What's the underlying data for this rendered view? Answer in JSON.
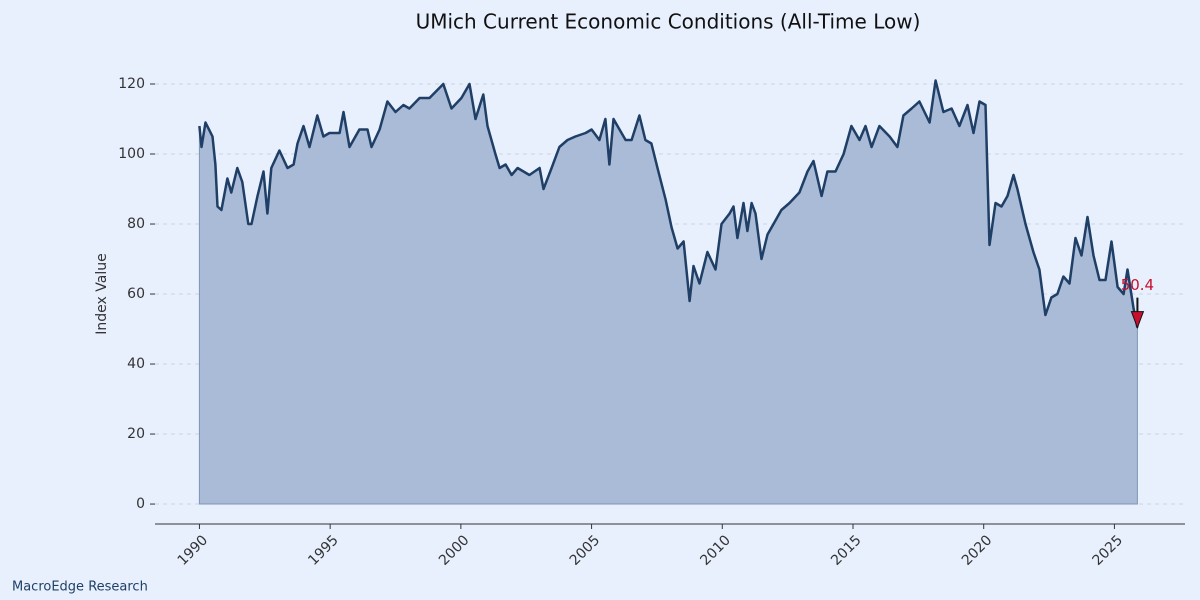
{
  "chart_data": {
    "type": "area",
    "title": "UMich Current Economic Conditions (All-Time Low)",
    "y_label": "Index Value",
    "source": "MacroEdge Research",
    "annotation": {
      "label": "50.4"
    },
    "x": [
      1990.0,
      1990.08,
      1990.23,
      1990.5,
      1990.61,
      1990.69,
      1990.84,
      1991.07,
      1991.22,
      1991.45,
      1991.64,
      1991.87,
      1991.99,
      1992.22,
      1992.45,
      1992.6,
      1992.75,
      1993.06,
      1993.37,
      1993.6,
      1993.75,
      1993.98,
      1994.21,
      1994.51,
      1994.74,
      1994.97,
      1995.36,
      1995.51,
      1995.74,
      1996.12,
      1996.43,
      1996.58,
      1996.89,
      1997.19,
      1997.5,
      1997.8,
      1998.03,
      1998.42,
      1998.8,
      1999.33,
      1999.64,
      2000.02,
      2000.33,
      2000.56,
      2000.86,
      2001.02,
      2001.32,
      2001.48,
      2001.71,
      2001.94,
      2002.17,
      2002.62,
      2003.01,
      2003.16,
      2003.47,
      2003.77,
      2004.08,
      2004.38,
      2004.77,
      2005.0,
      2005.3,
      2005.53,
      2005.68,
      2005.84,
      2005.99,
      2006.3,
      2006.53,
      2006.83,
      2007.06,
      2007.29,
      2007.52,
      2007.83,
      2008.06,
      2008.29,
      2008.52,
      2008.75,
      2008.9,
      2009.13,
      2009.43,
      2009.74,
      2009.97,
      2010.28,
      2010.43,
      2010.58,
      2010.81,
      2010.96,
      2011.12,
      2011.27,
      2011.5,
      2011.73,
      2011.96,
      2012.26,
      2012.57,
      2012.95,
      2013.26,
      2013.49,
      2013.8,
      2014.02,
      2014.33,
      2014.64,
      2014.94,
      2015.25,
      2015.48,
      2015.71,
      2016.01,
      2016.4,
      2016.7,
      2016.93,
      2017.24,
      2017.54,
      2017.93,
      2018.16,
      2018.46,
      2018.77,
      2019.07,
      2019.38,
      2019.61,
      2019.84,
      2020.07,
      2020.22,
      2020.45,
      2020.68,
      2020.91,
      2021.14,
      2021.29,
      2021.6,
      2021.9,
      2022.13,
      2022.36,
      2022.59,
      2022.82,
      2023.05,
      2023.28,
      2023.51,
      2023.74,
      2023.97,
      2024.2,
      2024.43,
      2024.66,
      2024.89,
      2025.12,
      2025.35,
      2025.5,
      2025.73,
      2025.88
    ],
    "series": [
      {
        "name": "Current Economic Conditions",
        "color": "#1f3f66",
        "fill": "#a9bbd6",
        "values": [
          108,
          102,
          109,
          105,
          97,
          85,
          84,
          93,
          89,
          96,
          92,
          80,
          80,
          88,
          95,
          83,
          96,
          101,
          96,
          97,
          103,
          108,
          102,
          111,
          105,
          106,
          106,
          112,
          102,
          107,
          107,
          102,
          107,
          115,
          112,
          114,
          113,
          116,
          116,
          120,
          113,
          116,
          120,
          110,
          117,
          108,
          100,
          96,
          97,
          94,
          96,
          94,
          96,
          90,
          96,
          102,
          104,
          105,
          106,
          107,
          104,
          110,
          97,
          110,
          108,
          104,
          104,
          111,
          104,
          103,
          96,
          87,
          79,
          73,
          75,
          58,
          68,
          63,
          72,
          67,
          80,
          83,
          85,
          76,
          86,
          78,
          86,
          83,
          70,
          77,
          80,
          84,
          86,
          89,
          95,
          98,
          88,
          95,
          95,
          100,
          108,
          104,
          108,
          102,
          108,
          105,
          102,
          111,
          113,
          115,
          109,
          121,
          112,
          113,
          108,
          114,
          106,
          115,
          114,
          74,
          86,
          85,
          88,
          94,
          90,
          80,
          72,
          67,
          54,
          59,
          60,
          65,
          63,
          76,
          71,
          82,
          71,
          64,
          64,
          75,
          62,
          60,
          67,
          56,
          50.4
        ]
      }
    ],
    "xlim": [
      1988.3,
      2027.7
    ],
    "ylim": [
      -5.7,
      124
    ],
    "xticks": [
      1990,
      1995,
      2000,
      2005,
      2010,
      2015,
      2020,
      2025
    ],
    "yticks": [
      0,
      20,
      40,
      60,
      80,
      100,
      120
    ],
    "grid": true
  }
}
